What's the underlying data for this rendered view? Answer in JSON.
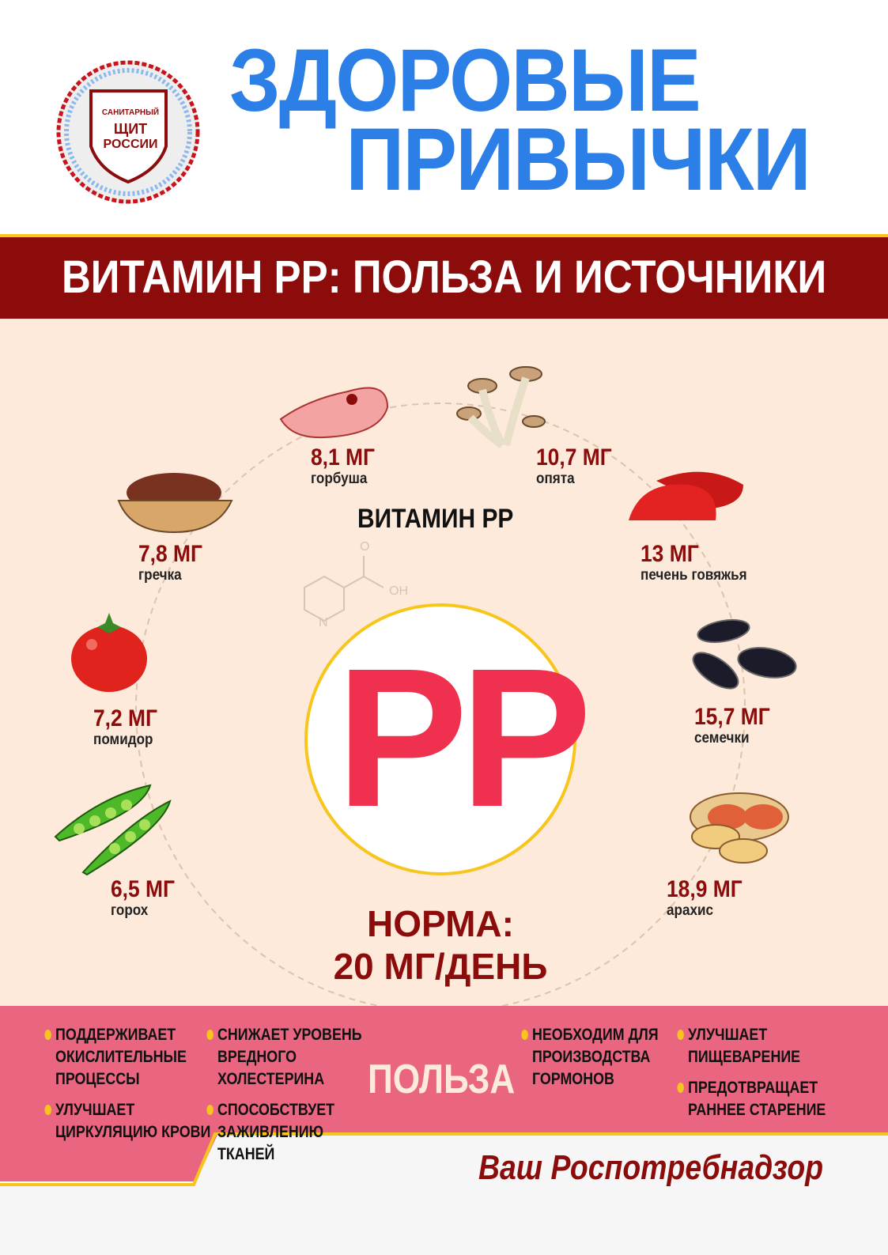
{
  "header": {
    "title_line1": "ЗДОРОВЫЕ",
    "title_line2": "ПРИВЫЧКИ",
    "logo": {
      "line1": "САНИТАРНЫЙ",
      "line2": "ЩИТ",
      "line3": "РОССИИ"
    }
  },
  "banner": "ВИТАМИН PP: ПОЛЬЗА И ИСТОЧНИКИ",
  "center": {
    "label": "ВИТАМИН PP",
    "letters": "PP",
    "formula_o": "O",
    "formula_oh": "OH",
    "formula_n": "N",
    "norm_line1": "НОРМА:",
    "norm_line2": "20 МГ/ДЕНЬ"
  },
  "sources": [
    {
      "value": "8,1 МГ",
      "name": "горбуша",
      "icon": "salmon-steak"
    },
    {
      "value": "10,7 МГ",
      "name": "опята",
      "icon": "mushrooms"
    },
    {
      "value": "13 МГ",
      "name": "печень говяжья",
      "icon": "beef-liver"
    },
    {
      "value": "15,7 МГ",
      "name": "семечки",
      "icon": "sunflower-seeds"
    },
    {
      "value": "18,9 МГ",
      "name": "арахис",
      "icon": "peanuts"
    },
    {
      "value": "6,5 МГ",
      "name": "горох",
      "icon": "peas"
    },
    {
      "value": "7,2 МГ",
      "name": "помидор",
      "icon": "tomato"
    },
    {
      "value": "7,8 МГ",
      "name": "гречка",
      "icon": "buckwheat"
    }
  ],
  "benefits": {
    "title": "ПОЛЬЗА",
    "items": [
      "ПОДДЕРЖИВАЕТ ОКИСЛИТЕЛЬНЫЕ ПРОЦЕССЫ",
      "УЛУЧШАЕТ ЦИРКУЛЯЦИЮ КРОВИ",
      "СНИЖАЕТ УРОВЕНЬ ВРЕДНОГО ХОЛЕСТЕРИНА",
      "СПОСОБСТВУЕТ ЗАЖИВЛЕНИЮ ТКАНЕЙ",
      "НЕОБХОДИМ ДЛЯ ПРОИЗВОДСТВА ГОРМОНОВ",
      "УЛУЧШАЕТ ПИЩЕВАРЕНИЕ",
      "ПРЕДОТВРАЩАЕТ РАННЕЕ СТАРЕНИЕ"
    ]
  },
  "footer": {
    "signature": "Ваш Роспотребнадзор"
  },
  "colors": {
    "blue": "#2b7fe6",
    "dark_red": "#8c0c0c",
    "pink": "#ea6580",
    "cream": "#fdeadb",
    "yellow": "#f7c51c",
    "pp_red": "#f0304f"
  }
}
